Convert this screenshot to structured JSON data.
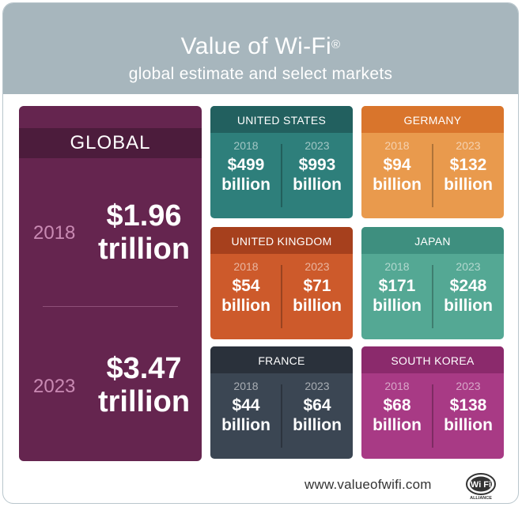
{
  "header": {
    "title": "Value of Wi-Fi",
    "title_mark": "®",
    "subtitle": "global estimate and select markets"
  },
  "global": {
    "label": "GLOBAL",
    "entries": [
      {
        "year": "2018",
        "amount": "$1.96",
        "unit": "trillion"
      },
      {
        "year": "2023",
        "amount": "$3.47",
        "unit": "trillion"
      }
    ]
  },
  "markets": [
    {
      "name": "UNITED STATES",
      "y1": "2018",
      "v1": "$499",
      "u1": "billion",
      "y2": "2023",
      "v2": "$993",
      "u2": "billion",
      "title_color": "#22605f",
      "body_color": "#2e7f7b"
    },
    {
      "name": "GERMANY",
      "y1": "2018",
      "v1": "$94",
      "u1": "billion",
      "y2": "2023",
      "v2": "$132",
      "u2": "billion",
      "title_color": "#d9752c",
      "body_color": "#e99a4d"
    },
    {
      "name": "UNITED KINGDOM",
      "y1": "2018",
      "v1": "$54",
      "u1": "billion",
      "y2": "2023",
      "v2": "$71",
      "u2": "billion",
      "title_color": "#a6401d",
      "body_color": "#cd5a2b"
    },
    {
      "name": "JAPAN",
      "y1": "2018",
      "v1": "$171",
      "u1": "billion",
      "y2": "2023",
      "v2": "$248",
      "u2": "billion",
      "title_color": "#3e8f7f",
      "body_color": "#54a894"
    },
    {
      "name": "FRANCE",
      "y1": "2018",
      "v1": "$44",
      "u1": "billion",
      "y2": "2023",
      "v2": "$64",
      "u2": "billion",
      "title_color": "#2a313b",
      "body_color": "#3b4653"
    },
    {
      "name": "SOUTH KOREA",
      "y1": "2018",
      "v1": "$68",
      "u1": "billion",
      "y2": "2023",
      "v2": "$138",
      "u2": "billion",
      "title_color": "#8b2a6c",
      "body_color": "#a83a85"
    }
  ],
  "footer": {
    "url": "www.valueofwifi.com",
    "logo_text": "Wi Fi",
    "logo_subtext": "ALLIANCE",
    "logo_icon": "wifi-alliance-logo-icon"
  }
}
